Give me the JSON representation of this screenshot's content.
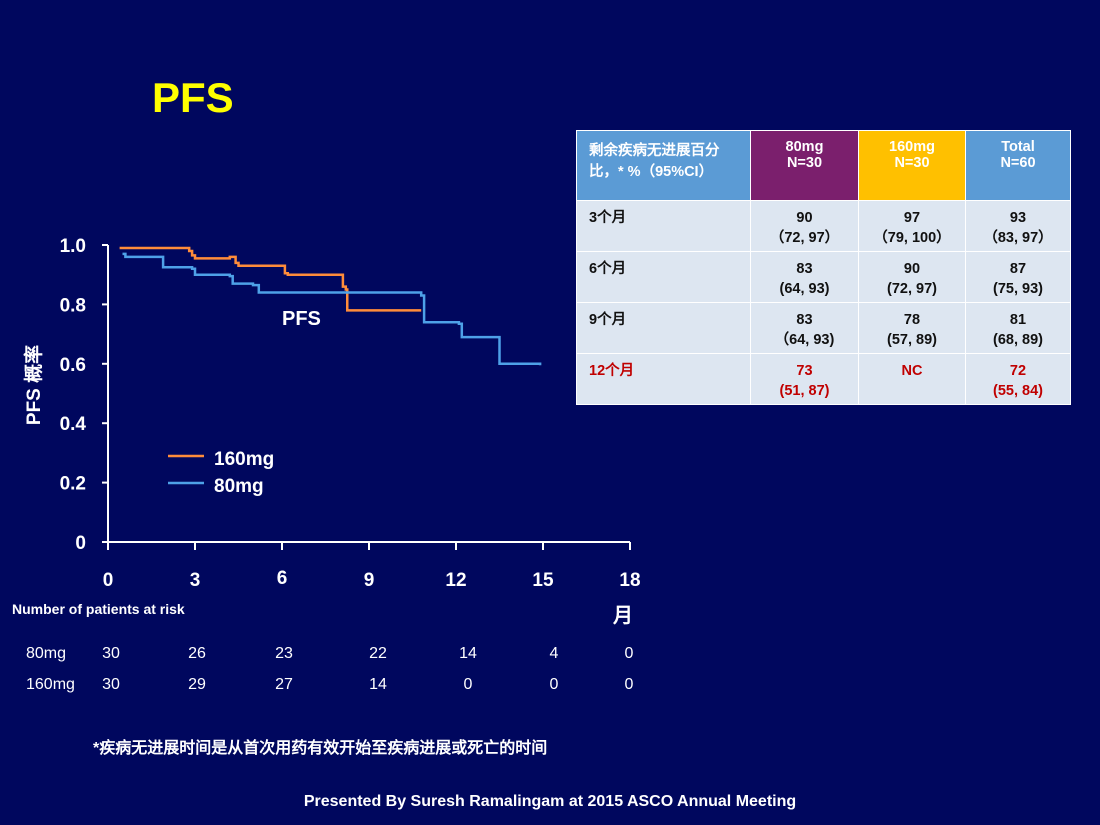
{
  "slide": {
    "title": "PFS",
    "footnote": "*疾病无进展时间是从首次用药有效开始至疾病进展或死亡的时间",
    "credit": "Presented By Suresh Ramalingam at 2015 ASCO Annual Meeting"
  },
  "colors": {
    "background": "#00075e",
    "title": "#ffff00",
    "series_160mg": "#ff8c3a",
    "series_80mg": "#4ea1e8",
    "header_80mg": "#7b1f6d",
    "header_160mg": "#ffc000",
    "header_other": "#5b9bd5",
    "table_body": "#dde6f1",
    "highlight_text": "#c00000"
  },
  "chart_data": {
    "type": "line",
    "xlabel": "月",
    "ylabel": "PFS 概率",
    "annotation": "PFS",
    "xlim": [
      0,
      18
    ],
    "ylim": [
      0,
      1.0
    ],
    "x_ticks": [
      0,
      3,
      6,
      9,
      12,
      15,
      18
    ],
    "y_ticks": [
      0,
      0.2,
      0.4,
      0.6,
      0.8,
      1.0
    ],
    "y_tick_labels": [
      "0",
      "0.2",
      "0.4",
      "0.6",
      "0.8",
      "1.0"
    ],
    "legend": {
      "placement": "bottom-left"
    },
    "series": [
      {
        "name": "160mg",
        "color": "#ff8c3a",
        "steps": [
          [
            0.4,
            0.99
          ],
          [
            2.8,
            0.98
          ],
          [
            2.9,
            0.965
          ],
          [
            3.0,
            0.955
          ],
          [
            4.2,
            0.96
          ],
          [
            4.4,
            0.94
          ],
          [
            4.5,
            0.93
          ],
          [
            5.9,
            0.93
          ],
          [
            6.1,
            0.905
          ],
          [
            6.2,
            0.9
          ],
          [
            8.0,
            0.9
          ],
          [
            8.1,
            0.86
          ],
          [
            8.2,
            0.85
          ],
          [
            8.25,
            0.78
          ],
          [
            10.8,
            0.78
          ]
        ]
      },
      {
        "name": "80mg",
        "color": "#4ea1e8",
        "steps": [
          [
            0.5,
            0.97
          ],
          [
            0.6,
            0.96
          ],
          [
            1.8,
            0.96
          ],
          [
            1.9,
            0.925
          ],
          [
            2.9,
            0.92
          ],
          [
            3.0,
            0.9
          ],
          [
            4.2,
            0.895
          ],
          [
            4.3,
            0.87
          ],
          [
            5.0,
            0.865
          ],
          [
            5.2,
            0.84
          ],
          [
            10.8,
            0.83
          ],
          [
            10.9,
            0.74
          ],
          [
            12.1,
            0.735
          ],
          [
            12.2,
            0.69
          ],
          [
            13.4,
            0.69
          ],
          [
            13.5,
            0.6
          ],
          [
            14.9,
            0.595
          ]
        ]
      }
    ]
  },
  "risk_table": {
    "title": "Number of patients at risk",
    "rows": [
      {
        "label": "80mg",
        "values": [
          "30",
          "26",
          "23",
          "22",
          "14",
          "4",
          "0"
        ]
      },
      {
        "label": "160mg",
        "values": [
          "30",
          "29",
          "27",
          "14",
          "0",
          "0",
          "0"
        ]
      }
    ]
  },
  "summary_table": {
    "header": {
      "label_line1": "剩余疾病无进展百分",
      "label_line2": "比，* %（95%CI）",
      "col_80": [
        "80mg",
        "N=30"
      ],
      "col_160": [
        "160mg",
        "N=30"
      ],
      "col_total": [
        "Total",
        "N=60"
      ]
    },
    "rows": [
      {
        "label": "3个月",
        "c80": [
          "90",
          "（72, 97）"
        ],
        "c160": [
          "97",
          "（79, 100）"
        ],
        "total": [
          "93",
          "（83, 97）"
        ]
      },
      {
        "label": "6个月",
        "c80": [
          "83",
          "(64, 93)"
        ],
        "c160": [
          "90",
          "(72, 97)"
        ],
        "total": [
          "87",
          "(75, 93)"
        ]
      },
      {
        "label": "9个月",
        "c80": [
          "83",
          "（64, 93)"
        ],
        "c160": [
          "78",
          "(57, 89)"
        ],
        "total": [
          "81",
          "(68, 89)"
        ]
      },
      {
        "label": "12个月",
        "c80": [
          "73",
          "(51, 87)"
        ],
        "c160": [
          "NC",
          ""
        ],
        "total": [
          "72",
          "(55, 84)"
        ],
        "highlight": true
      }
    ]
  }
}
